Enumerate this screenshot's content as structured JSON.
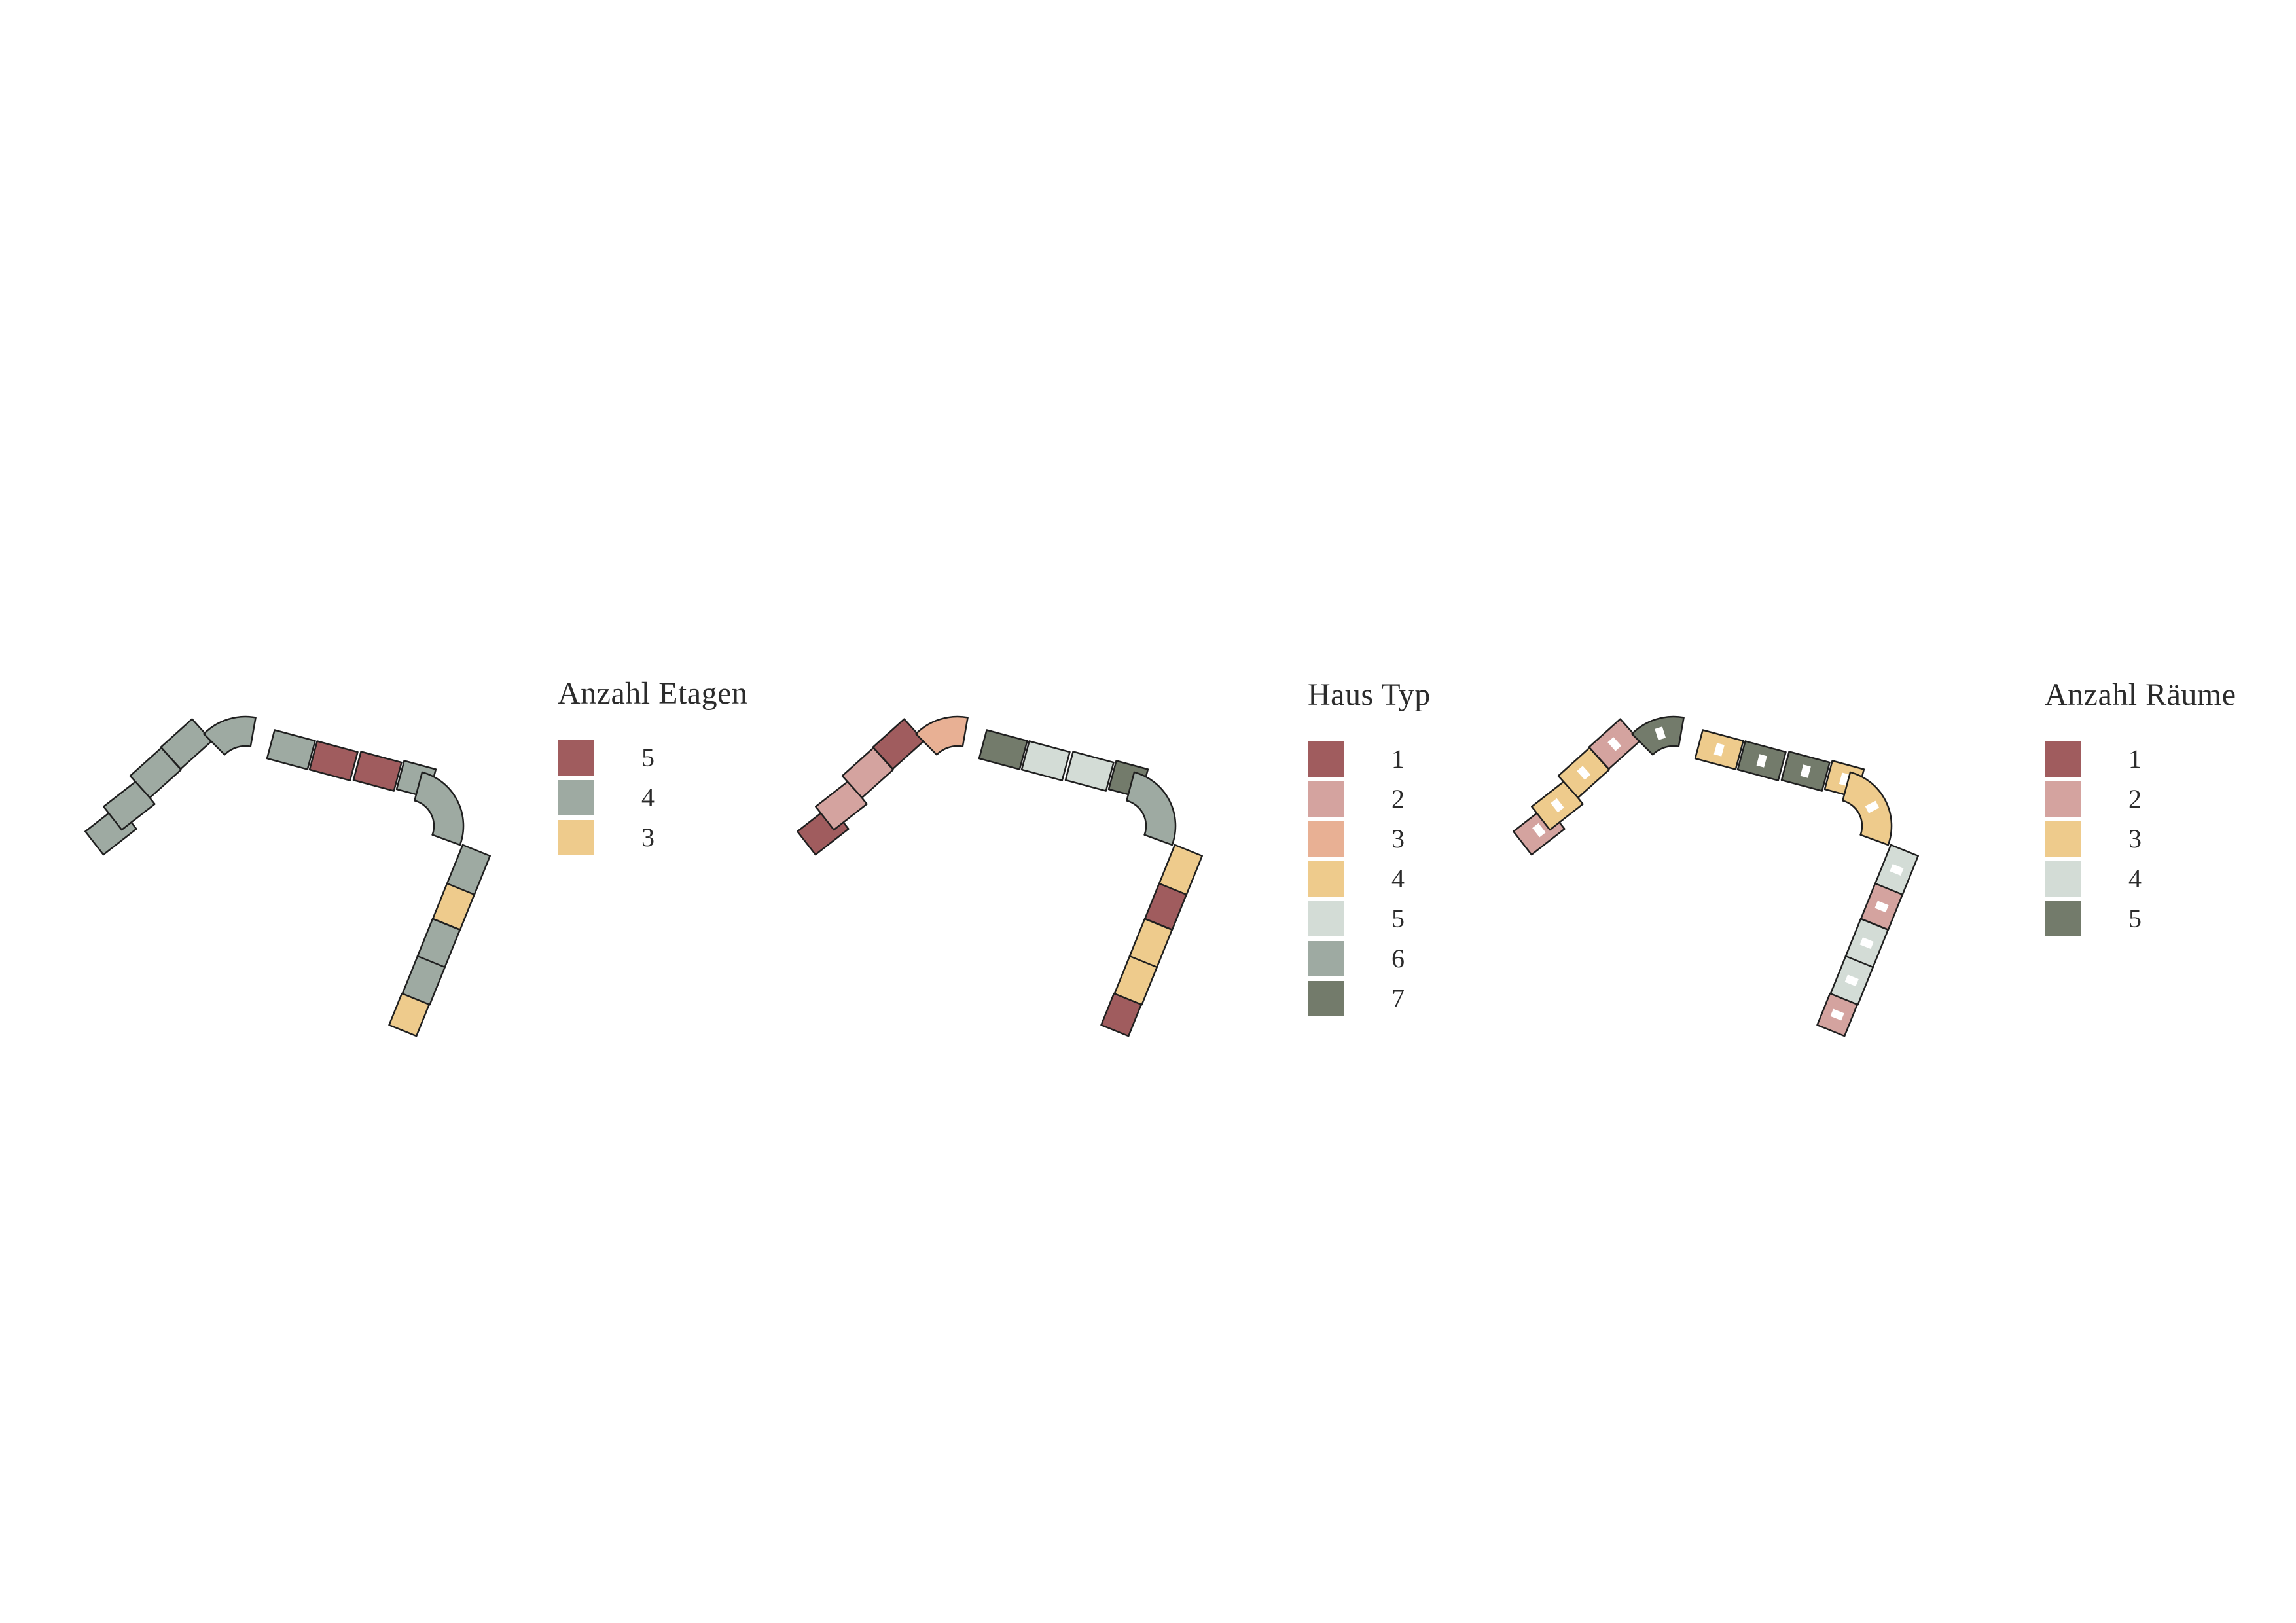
{
  "legends": {
    "etagen": {
      "title": "Anzahl Etagen",
      "items": [
        {
          "label": "5",
          "color": "#a05c5e"
        },
        {
          "label": "4",
          "color": "#9eaaa2"
        },
        {
          "label": "3",
          "color": "#eecb8c"
        }
      ]
    },
    "typ": {
      "title": "Haus Typ",
      "items": [
        {
          "label": "1",
          "color": "#a05c5e"
        },
        {
          "label": "2",
          "color": "#d4a39f"
        },
        {
          "label": "3",
          "color": "#e8b094"
        },
        {
          "label": "4",
          "color": "#eecb8c"
        },
        {
          "label": "5",
          "color": "#d3dcd6"
        },
        {
          "label": "6",
          "color": "#9eaaa2"
        },
        {
          "label": "7",
          "color": "#737b6b"
        }
      ]
    },
    "raeume": {
      "title": "Anzahl Räume",
      "items": [
        {
          "label": "1",
          "color": "#a05c5e"
        },
        {
          "label": "2",
          "color": "#d4a39f"
        },
        {
          "label": "3",
          "color": "#eecb8c"
        },
        {
          "label": "4",
          "color": "#d3dcd6"
        },
        {
          "label": "5",
          "color": "#737b6b"
        }
      ]
    }
  },
  "plans": {
    "etagen": [
      "4",
      "4",
      "4",
      "4",
      "4",
      "4",
      "5",
      "5",
      "4",
      "4",
      "4",
      "3",
      "4",
      "4",
      "3"
    ],
    "typ": [
      "1",
      "2",
      "2",
      "1",
      "3",
      "7",
      "5",
      "5",
      "7",
      "6",
      "4",
      "1",
      "4",
      "4",
      "1"
    ],
    "raeume": [
      "2",
      "3",
      "3",
      "2",
      "5",
      "3",
      "5",
      "5",
      "3",
      "3",
      "4",
      "2",
      "4",
      "4",
      "2"
    ]
  }
}
